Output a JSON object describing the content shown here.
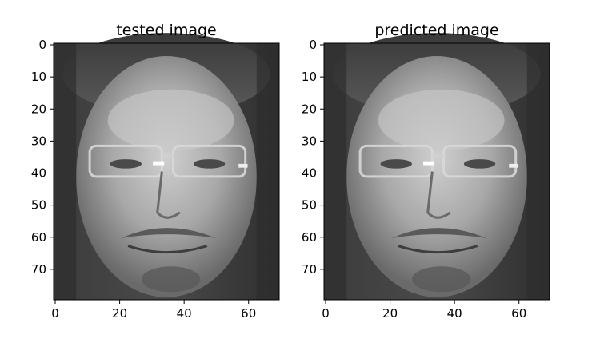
{
  "chart_data": [
    {
      "type": "heatmap",
      "title": "tested image",
      "colormap": "gray",
      "image_shape": [
        80,
        70
      ],
      "xlim": [
        -0.5,
        69.5
      ],
      "ylim": [
        79.5,
        -0.5
      ],
      "xticks": [
        0,
        20,
        40,
        60
      ],
      "yticks": [
        0,
        10,
        20,
        30,
        40,
        50,
        60,
        70
      ],
      "content": "grayscale face photo"
    },
    {
      "type": "heatmap",
      "title": "predicted image",
      "colormap": "gray",
      "image_shape": [
        80,
        70
      ],
      "xlim": [
        -0.5,
        69.5
      ],
      "ylim": [
        79.5,
        -0.5
      ],
      "xticks": [
        0,
        20,
        40,
        60
      ],
      "yticks": [
        0,
        10,
        20,
        30,
        40,
        50,
        60,
        70
      ],
      "content": "grayscale face photo"
    }
  ]
}
